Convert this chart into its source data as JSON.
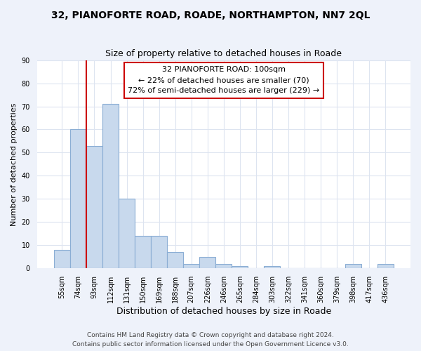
{
  "title": "32, PIANOFORTE ROAD, ROADE, NORTHAMPTON, NN7 2QL",
  "subtitle": "Size of property relative to detached houses in Roade",
  "xlabel": "Distribution of detached houses by size in Roade",
  "ylabel": "Number of detached properties",
  "bar_labels": [
    "55sqm",
    "74sqm",
    "93sqm",
    "112sqm",
    "131sqm",
    "150sqm",
    "169sqm",
    "188sqm",
    "207sqm",
    "226sqm",
    "246sqm",
    "265sqm",
    "284sqm",
    "303sqm",
    "322sqm",
    "341sqm",
    "360sqm",
    "379sqm",
    "398sqm",
    "417sqm",
    "436sqm"
  ],
  "bar_values": [
    8,
    60,
    53,
    71,
    30,
    14,
    14,
    7,
    2,
    5,
    2,
    1,
    0,
    1,
    0,
    0,
    0,
    0,
    2,
    0,
    2
  ],
  "bar_color": "#c8d9ed",
  "bar_edge_color": "#8aadd4",
  "vline_x": 1.5,
  "vline_color": "#cc0000",
  "ylim": [
    0,
    90
  ],
  "annotation_title": "32 PIANOFORTE ROAD: 100sqm",
  "annotation_line1": "← 22% of detached houses are smaller (70)",
  "annotation_line2": "72% of semi-detached houses are larger (229) →",
  "annotation_box_color": "#ffffff",
  "annotation_box_edge": "#cc0000",
  "footer1": "Contains HM Land Registry data © Crown copyright and database right 2024.",
  "footer2": "Contains public sector information licensed under the Open Government Licence v3.0.",
  "title_fontsize": 10,
  "subtitle_fontsize": 9,
  "xlabel_fontsize": 9,
  "ylabel_fontsize": 8,
  "tick_fontsize": 7,
  "ann_fontsize": 8,
  "footer_fontsize": 6.5,
  "plot_bg_color": "#ffffff",
  "fig_bg_color": "#eef2fa",
  "grid_color": "#dde4f0"
}
